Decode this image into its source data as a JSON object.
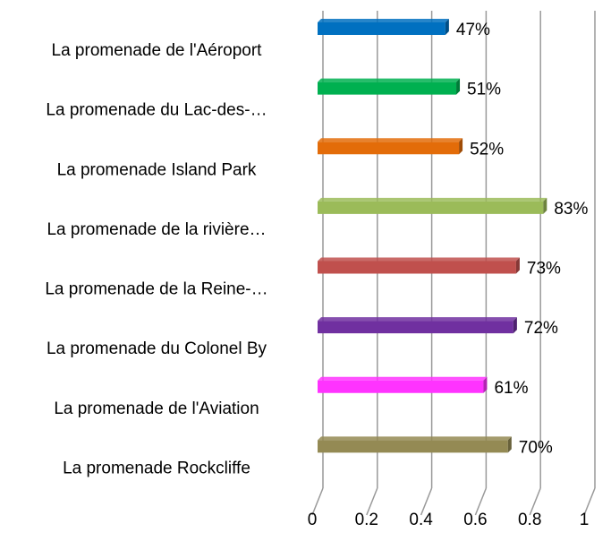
{
  "chart_data": {
    "type": "bar",
    "orientation": "horizontal",
    "categories": [
      "La promenade de l'Aéroport",
      "La promenade du Lac-des-…",
      "La promenade Island Park",
      "La promenade de la rivière…",
      "La promenade de la Reine-…",
      "La promenade du Colonel By",
      "La promenade de l'Aviation",
      "La promenade Rockcliffe"
    ],
    "values": [
      0.47,
      0.51,
      0.52,
      0.83,
      0.73,
      0.72,
      0.61,
      0.7
    ],
    "value_labels": [
      "47%",
      "51%",
      "52%",
      "83%",
      "73%",
      "72%",
      "61%",
      "70%"
    ],
    "colors": [
      "#0070c0",
      "#00b050",
      "#e36c09",
      "#9bbb59",
      "#c0504d",
      "#7030a0",
      "#ff33ff",
      "#948a54"
    ],
    "xlim": [
      0,
      1
    ],
    "xticks": [
      0,
      0.2,
      0.4,
      0.6,
      0.8,
      1
    ],
    "grid": true
  }
}
